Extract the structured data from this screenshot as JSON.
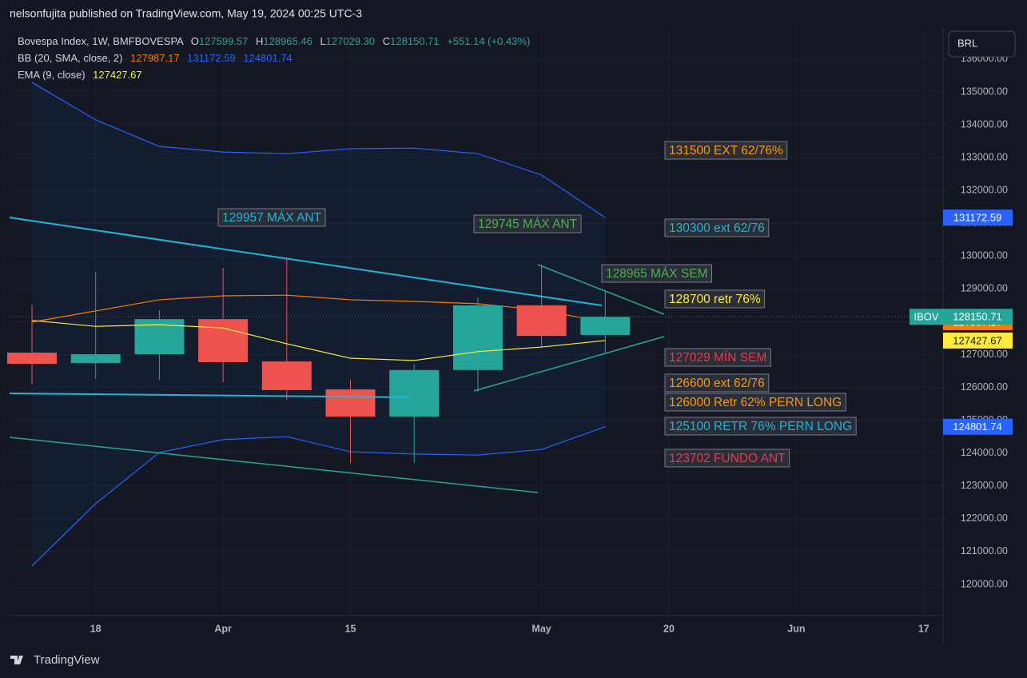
{
  "header": {
    "publisher": "nelsonfujita published on TradingView.com, May 19, 2024 00:25 UTC-3",
    "brand": "TradingView",
    "currency": "BRL"
  },
  "chart_data": {
    "type": "candlestick",
    "title": "Bovespa Index, 1W, BMFBOVESPA",
    "symbol_tag": "IBOV",
    "ohlc_letters": [
      "O",
      "H",
      "L",
      "C"
    ],
    "change": "+551.14 (+0.43%)",
    "categories": [
      null,
      "18",
      null,
      "Apr",
      null,
      "15",
      null,
      null,
      "May",
      null,
      "20",
      null,
      "Jun",
      null,
      "17"
    ],
    "open": [
      127060,
      126740,
      127010,
      128080,
      126790,
      125940,
      125110,
      126530,
      128500,
      127599.57,
      null,
      null,
      null,
      null,
      null
    ],
    "high": [
      128520,
      129520,
      128350,
      129640,
      129960,
      126230,
      126700,
      128740,
      129745,
      128965.46,
      null,
      null,
      null,
      null,
      null
    ],
    "low": [
      126090,
      126260,
      126230,
      126160,
      125620,
      123702,
      123700,
      125870,
      127230,
      127029.3,
      null,
      null,
      null,
      null,
      null
    ],
    "low_labels": [
      null,
      null,
      null,
      null,
      null,
      null,
      null,
      null,
      null,
      "127029.30",
      null,
      null,
      null,
      null,
      null
    ],
    "close": [
      126720,
      127010,
      128080,
      126770,
      125920,
      125110,
      126530,
      128500,
      127570,
      128150.71,
      null,
      null,
      null,
      null,
      null
    ],
    "up_color": "#26a69a",
    "down_color": "#ef5350",
    "indicators": [
      {
        "name": "BB (20, SMA, close, 2)",
        "lines": [
          {
            "color": "#f57c00",
            "values": [
              127990,
              128330,
              128670,
              128790,
              128810,
              128670,
              128620,
              128550,
              128350,
              127987.17,
              null,
              null,
              null,
              null,
              null
            ]
          },
          {
            "color": "#2962ff",
            "values": [
              135290,
              134150,
              133340,
              133170,
              133120,
              133270,
              133290,
              133120,
              132470,
              131172.59,
              null,
              null,
              null,
              null,
              null
            ]
          },
          {
            "color": "#2962ff",
            "values": [
              120560,
              122460,
              124020,
              124410,
              124500,
              124040,
              123970,
              123940,
              124110,
              124801.74,
              null,
              null,
              null,
              null,
              null
            ]
          }
        ]
      },
      {
        "name": "EMA (9, close)",
        "lines": [
          {
            "color": "#ffeb3b",
            "values": [
              128040,
              127860,
              127910,
              127810,
              127330,
              126890,
              126820,
              127090,
              127230,
              127427.67,
              null,
              null,
              null,
              null,
              null
            ]
          }
        ]
      }
    ],
    "ylim": [
      119050,
      136947
    ],
    "yticks": [
      {
        "value": 120000,
        "label": "120000.00"
      },
      {
        "value": 121000,
        "label": "121000.00"
      },
      {
        "value": 122000,
        "label": "122000.00"
      },
      {
        "value": 123000,
        "label": "123000.00"
      },
      {
        "value": 124000,
        "label": "124000.00"
      },
      {
        "value": 125000,
        "label": "125000.00"
      },
      {
        "value": 126000,
        "label": "126000.00"
      },
      {
        "value": 127000,
        "label": "127000.00"
      },
      {
        "value": 128000,
        "label": "128000.00"
      },
      {
        "value": 129000,
        "label": "129000.00"
      },
      {
        "value": 130000,
        "label": "130000.00"
      },
      {
        "value": 131000,
        "label": "131000.00"
      },
      {
        "value": 132000,
        "label": "132000.00"
      },
      {
        "value": 133000,
        "label": "133000.00"
      },
      {
        "value": 134000,
        "label": "134000.00"
      },
      {
        "value": 135000,
        "label": "135000.00"
      },
      {
        "value": 136000,
        "label": "136000.00"
      }
    ],
    "grid": true,
    "annotations": [
      {
        "text": "131500 EXT 62/76%",
        "color": "#ff9800"
      },
      {
        "text": "129957 MÁX ANT",
        "color": "#22b5d6"
      },
      {
        "text": "129745 MÁX ANT",
        "color": "#4caf50"
      },
      {
        "text": "130300 ext 62/76",
        "color": "#22b5d6"
      },
      {
        "text": "128965 MÁX SEM",
        "color": "#4caf50"
      },
      {
        "text": "128700 retr 76%",
        "color": "#ffeb3b"
      },
      {
        "text": "127029 MÍN SEM",
        "color": "#f23645"
      },
      {
        "text": "126600 ext 62/76",
        "color": "#ff9800"
      },
      {
        "text": "126000 Retr 62% PERN LONG",
        "color": "#ff9800"
      },
      {
        "text": "125100 RETR 76% PERN LONG",
        "color": "#22b5d6"
      },
      {
        "text": "123702 FUNDO ANT",
        "color": "#f23645"
      }
    ]
  }
}
